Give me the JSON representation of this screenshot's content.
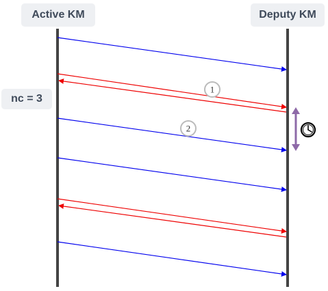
{
  "actors": {
    "active": "Active KM",
    "deputy": "Deputy KM"
  },
  "nc_label": "nc = 3",
  "callouts": [
    "1",
    "2"
  ],
  "colors": {
    "lifeline": "#444444",
    "heartbeat": "#0000ee",
    "exchange": "#ee0000",
    "timeout_arrow": "#8e6aa8",
    "label_bg": "#eef0f3",
    "label_text": "#3f4a5a"
  },
  "icons": {
    "timeout": "clock-icon"
  }
}
